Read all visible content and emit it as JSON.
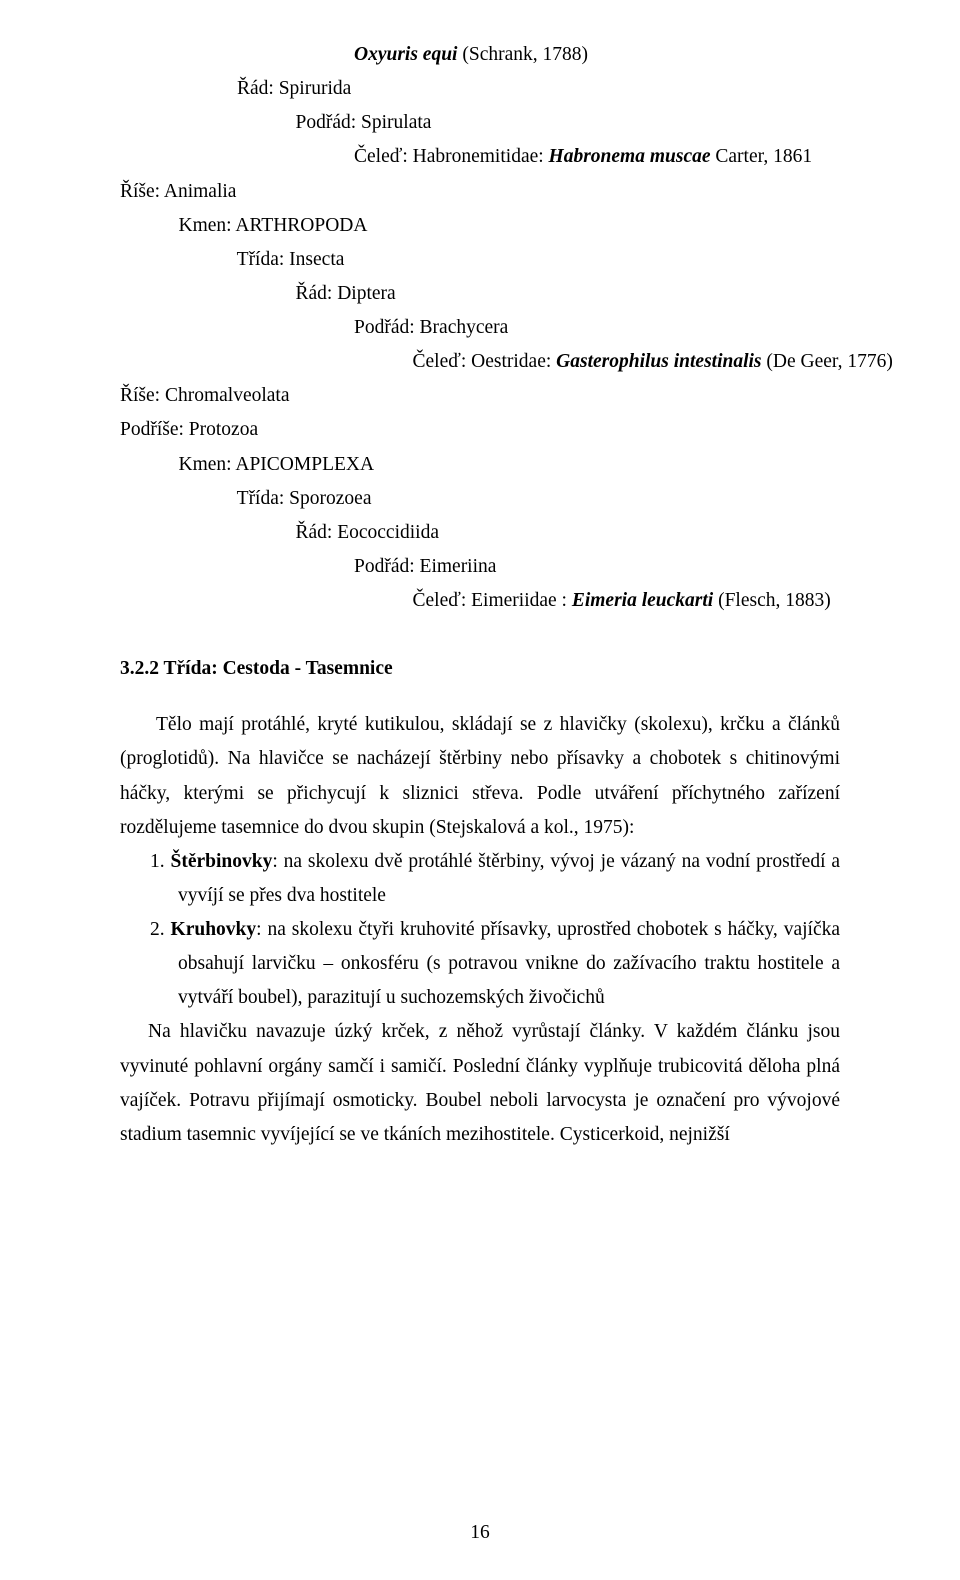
{
  "taxonomy": {
    "l1": "Oxyuris equi",
    "l1a": " (Schrank, 1788)",
    "l2": "Řád: Spirurida",
    "l3": "Podřád: Spirulata",
    "l4a": "Čeleď: Habronemitidae: ",
    "l4b": "Habronema muscae",
    "l4c": " Carter, 1861",
    "l5": "Říše: Animalia",
    "l6": "Kmen: ARTHROPODA",
    "l7": "Třída: Insecta",
    "l8": "Řád: Diptera",
    "l9": "Podřád: Brachycera",
    "l10a": "Čeleď: Oestridae: ",
    "l10b": "Gasterophilus intestinalis",
    "l10c": " (De Geer, 1776)",
    "l11": "Říše: Chromalveolata",
    "l12": "Podříše: Protozoa",
    "l13": "Kmen: APICOMPLEXA",
    "l14": "Třída: Sporozoea",
    "l15": "Řád: Eococcidiida",
    "l16": "Podřád: Eimeriina",
    "l17a": "Čeleď: Eimeriidae : ",
    "l17b": "Eimeria leuckarti",
    "l17c": " (Flesch, 1883)"
  },
  "heading": "3.2.2   Třída: Cestoda - Tasemnice",
  "paragraphs": {
    "p1": "Tělo mají protáhlé, kryté kutikulou, skládají se z hlavičky (skolexu), krčku a článků (proglotidů). Na hlavičce se nacházejí štěrbiny nebo přísavky a chobotek s chitinovými háčky, kterými se přichycují k sliznici střeva. Podle utváření příchytného zařízení rozdělujeme tasemnice do dvou skupin (Stejskalová a kol., 1975):",
    "li1n": "1. ",
    "li1a": "Štěrbinovky",
    "li1b": ": na skolexu dvě protáhlé štěrbiny, vývoj je vázaný na vodní prostředí a vyvíjí se přes dva hostitele",
    "li2n": "2. ",
    "li2a": "Kruhovky",
    "li2b": ": na skolexu čtyři kruhovité přísavky, uprostřed chobotek s háčky, vajíčka obsahují larvičku – onkosféru (s potravou vnikne do zažívacího traktu hostitele a vytváří boubel), parazitují u suchozemských živočichů",
    "p2": "Na hlavičku navazuje úzký krček, z něhož vyrůstají články. V každém článku jsou vyvinuté pohlavní orgány samčí i samičí. Poslední články vyplňuje trubicovitá děloha plná vajíček. Potravu přijímají osmoticky. Boubel neboli larvocysta je označení pro vývojové stadium tasemnic vyvíjející se ve tkáních mezihostitele. Cysticerkoid, nejnižší"
  },
  "pageNumber": "16",
  "indent": {
    "i0": "",
    "i1": "            ",
    "i2": "                        ",
    "i3": "                                    ",
    "i4": "                                                ",
    "i5": "                                                            "
  }
}
